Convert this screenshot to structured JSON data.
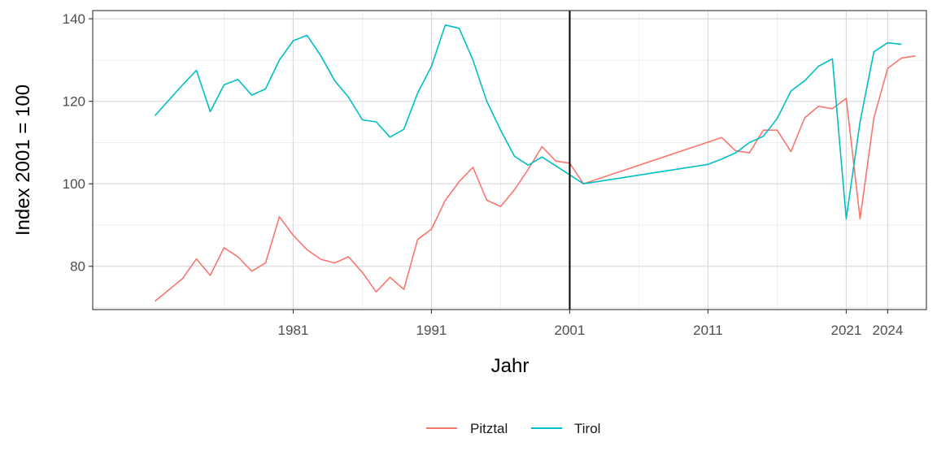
{
  "chart_data": {
    "type": "line",
    "xlabel": "Jahr",
    "ylabel": "Index 2001 = 100",
    "x_ticks": [
      1981,
      1991,
      2001,
      2011,
      2021,
      2024
    ],
    "y_ticks": [
      80,
      100,
      120,
      140
    ],
    "xlim": [
      1966.5,
      2026.8
    ],
    "ylim": [
      69.5,
      142
    ],
    "grid": true,
    "legend_position": "bottom",
    "reference_line_x": 2001,
    "series": [
      {
        "name": "Pitztal",
        "color": "#F8766D",
        "points": [
          [
            1971,
            71.5
          ],
          [
            1973,
            77
          ],
          [
            1974,
            81.8
          ],
          [
            1975,
            77.8
          ],
          [
            1976,
            84.5
          ],
          [
            1977,
            82.3
          ],
          [
            1978,
            78.8
          ],
          [
            1979,
            80.8
          ],
          [
            1980,
            92
          ],
          [
            1981,
            87.5
          ],
          [
            1982,
            84
          ],
          [
            1983,
            81.7
          ],
          [
            1984,
            80.8
          ],
          [
            1985,
            82.3
          ],
          [
            1986,
            78.5
          ],
          [
            1987,
            73.8
          ],
          [
            1988,
            77.3
          ],
          [
            1989,
            74.4
          ],
          [
            1990,
            86.5
          ],
          [
            1991,
            89
          ],
          [
            1992,
            96
          ],
          [
            1993,
            100.5
          ],
          [
            1994,
            104
          ],
          [
            1995,
            96
          ],
          [
            1996,
            94.5
          ],
          [
            1997,
            98.5
          ],
          [
            1998,
            103.5
          ],
          [
            1999,
            109
          ],
          [
            2000,
            105.5
          ],
          [
            2001,
            105
          ],
          [
            2002,
            100
          ],
          [
            2012,
            111.2
          ],
          [
            2013,
            108
          ],
          [
            2014,
            107.5
          ],
          [
            2015,
            113
          ],
          [
            2016,
            113
          ],
          [
            2017,
            107.8
          ],
          [
            2018,
            116
          ],
          [
            2019,
            118.8
          ],
          [
            2020,
            118.2
          ],
          [
            2021,
            120.7
          ],
          [
            2022,
            91.5
          ],
          [
            2023,
            116
          ],
          [
            2024,
            128
          ],
          [
            2025,
            130.5
          ],
          [
            2026,
            131
          ]
        ]
      },
      {
        "name": "Tirol",
        "color": "#00BFC4",
        "points": [
          [
            1971,
            116.5
          ],
          [
            1973,
            124
          ],
          [
            1974,
            127.5
          ],
          [
            1975,
            117.5
          ],
          [
            1976,
            124
          ],
          [
            1977,
            125.3
          ],
          [
            1978,
            121.5
          ],
          [
            1979,
            123
          ],
          [
            1980,
            130
          ],
          [
            1981,
            134.7
          ],
          [
            1982,
            136
          ],
          [
            1983,
            131
          ],
          [
            1984,
            125
          ],
          [
            1985,
            121
          ],
          [
            1986,
            115.5
          ],
          [
            1987,
            115
          ],
          [
            1988,
            111.3
          ],
          [
            1989,
            113.2
          ],
          [
            1990,
            122
          ],
          [
            1991,
            128.5
          ],
          [
            1992,
            138.5
          ],
          [
            1993,
            137.7
          ],
          [
            1994,
            130
          ],
          [
            1995,
            120
          ],
          [
            1996,
            113
          ],
          [
            1997,
            106.7
          ],
          [
            1998,
            104.5
          ],
          [
            1999,
            106.5
          ],
          [
            2002,
            100
          ],
          [
            2011,
            104.7
          ],
          [
            2012,
            106
          ],
          [
            2013,
            107.5
          ],
          [
            2014,
            110
          ],
          [
            2015,
            111.5
          ],
          [
            2016,
            115.8
          ],
          [
            2017,
            122.5
          ],
          [
            2018,
            125
          ],
          [
            2019,
            128.5
          ],
          [
            2020,
            130.3
          ],
          [
            2021,
            91.5
          ],
          [
            2022,
            115
          ],
          [
            2023,
            132
          ],
          [
            2024,
            134.2
          ],
          [
            2025,
            133.8
          ]
        ]
      }
    ]
  }
}
